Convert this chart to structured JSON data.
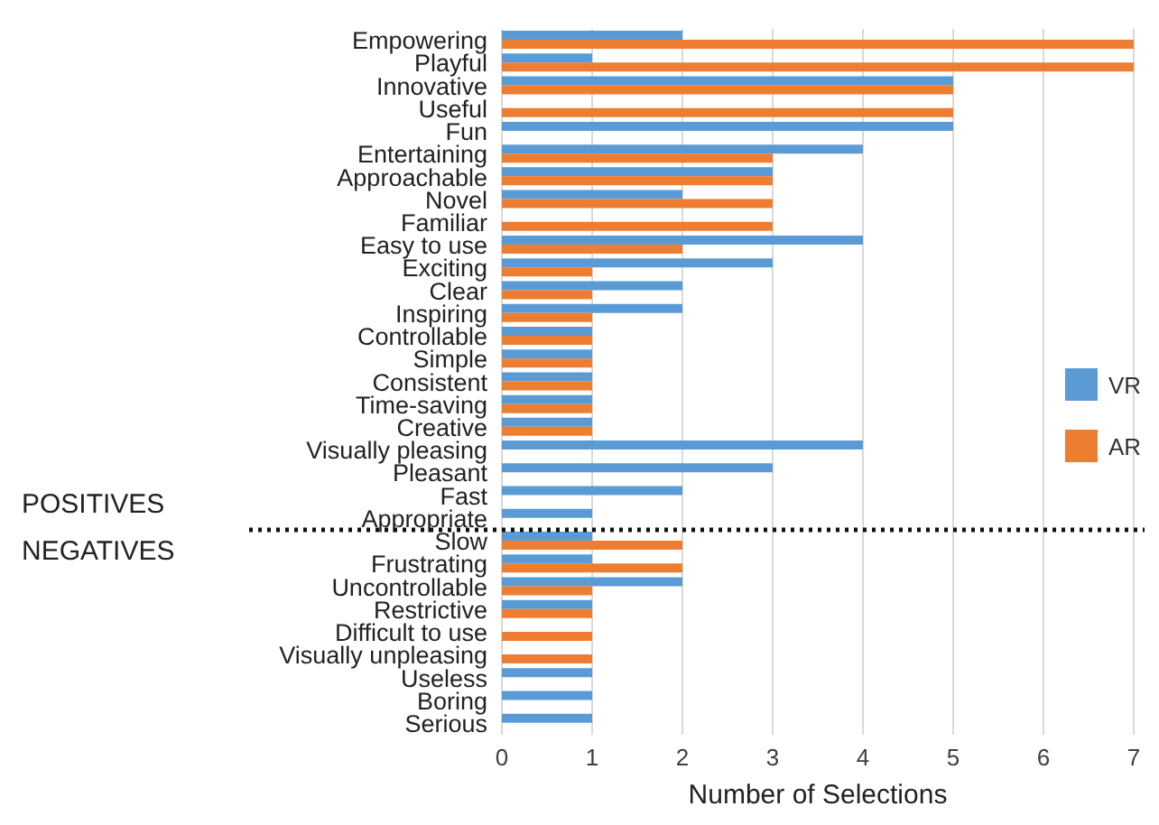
{
  "chart_data": {
    "type": "bar",
    "orientation": "horizontal",
    "xlabel": "Number of Selections",
    "categories": [
      "Empowering",
      "Playful",
      "Innovative",
      "Useful",
      "Fun",
      "Entertaining",
      "Approachable",
      "Novel",
      "Familiar",
      "Easy to use",
      "Exciting",
      "Clear",
      "Inspiring",
      "Controllable",
      "Simple",
      "Consistent",
      "Time-saving",
      "Creative",
      "Visually pleasing",
      "Pleasant",
      "Fast",
      "Appropriate",
      "Slow",
      "Frustrating",
      "Uncontrollable",
      "Restrictive",
      "Difficult to use",
      "Visually unpleasing",
      "Useless",
      "Boring",
      "Serious"
    ],
    "series": [
      {
        "name": "VR",
        "color": "#5b9bd5",
        "values": [
          2,
          1,
          5,
          null,
          5,
          4,
          3,
          2,
          null,
          4,
          3,
          2,
          2,
          1,
          1,
          1,
          1,
          1,
          4,
          3,
          2,
          1,
          1,
          1,
          2,
          1,
          null,
          null,
          1,
          1,
          1
        ]
      },
      {
        "name": "AR",
        "color": "#ed7d31",
        "values": [
          7,
          7,
          5,
          5,
          null,
          3,
          3,
          3,
          3,
          2,
          1,
          1,
          1,
          1,
          1,
          1,
          1,
          1,
          null,
          null,
          null,
          null,
          2,
          2,
          1,
          1,
          1,
          1,
          null,
          null,
          null
        ]
      }
    ],
    "xlim": [
      0,
      7
    ],
    "xticks": [
      0,
      1,
      2,
      3,
      4,
      5,
      6,
      7
    ],
    "grid": "x",
    "legend": "right",
    "ref_lines": [
      {
        "axis": "y",
        "value": "Slow",
        "color": "#111111",
        "line_style": "dotted"
      }
    ],
    "annotations": [
      "POSITIVES",
      "NEGATIVES"
    ]
  }
}
